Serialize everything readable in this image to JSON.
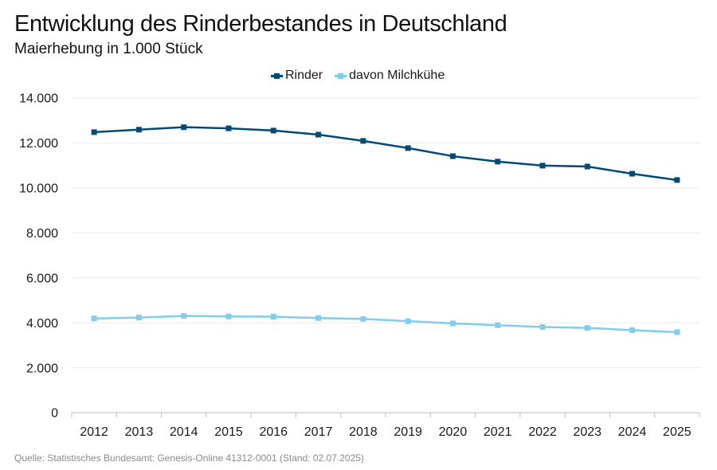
{
  "source": "Quelle: Statistisches Bundesamt: Genesis-Online 41312-0001 (Stand: 02.07.2025)",
  "colors": {
    "grid": "#ebebeb",
    "axis": "#bdbdbd"
  },
  "chart_data": {
    "type": "line",
    "title": "Entwicklung des Rinderbestandes in Deutschland",
    "subtitle": "Maierhebung in 1.000 Stück",
    "xlabel": "",
    "ylabel": "",
    "categories": [
      "2012",
      "2013",
      "2014",
      "2015",
      "2016",
      "2017",
      "2018",
      "2019",
      "2020",
      "2021",
      "2022",
      "2023",
      "2024",
      "2025"
    ],
    "series": [
      {
        "name": "Rinder",
        "color": "#004b76",
        "values": [
          12480,
          12590,
          12700,
          12650,
          12550,
          12370,
          12090,
          11770,
          11410,
          11170,
          10990,
          10950,
          10630,
          10350
        ]
      },
      {
        "name": "davon Milchkühe",
        "color": "#80cdec",
        "values": [
          4190,
          4230,
          4300,
          4280,
          4270,
          4210,
          4170,
          4070,
          3970,
          3890,
          3810,
          3770,
          3670,
          3580
        ]
      }
    ],
    "ylim": [
      0,
      14000
    ],
    "yticks": [
      0,
      2000,
      4000,
      6000,
      8000,
      10000,
      12000,
      14000
    ],
    "ytick_labels": [
      "0",
      "2.000",
      "4.000",
      "6.000",
      "8.000",
      "10.000",
      "12.000",
      "14.000"
    ],
    "grid": true,
    "legend": "top-center"
  }
}
